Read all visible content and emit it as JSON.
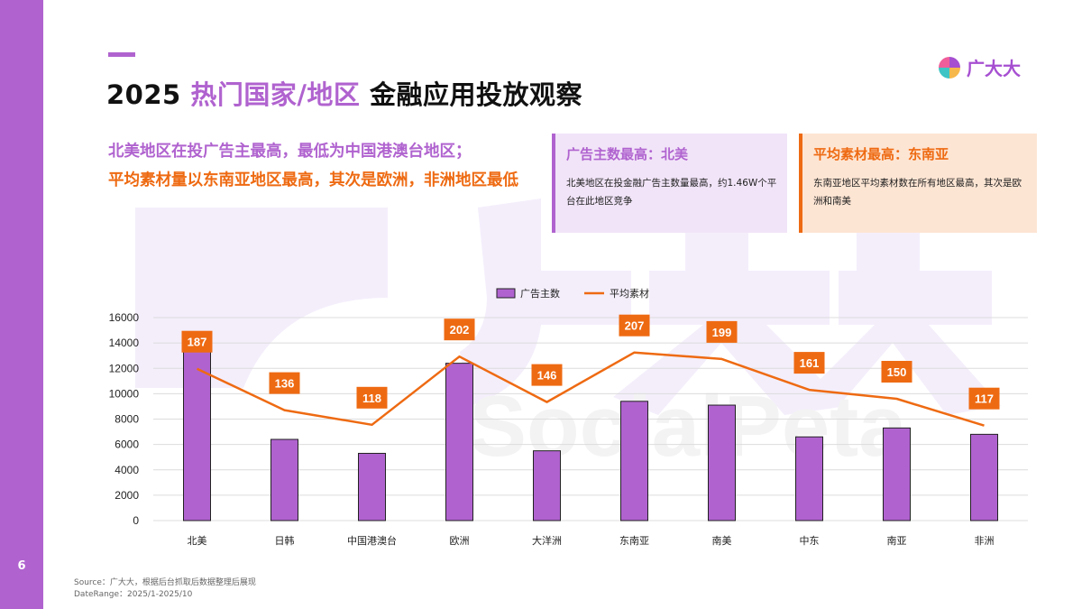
{
  "page_number": "6",
  "header": {
    "title_year": "2025",
    "title_highlight": "热门国家/地区",
    "title_rest": "金融应用投放观察"
  },
  "logo": {
    "text": "广大大"
  },
  "summary": {
    "line_purple": "北美地区在投广告主最高，最低为中国港澳台地区；",
    "line_orange": "平均素材量以东南亚地区最高，其次是欧洲，非洲地区最低"
  },
  "cards": [
    {
      "title": "广告主数最高：北美",
      "body": "北美地区在投金融广告主数量最高，约1.46W个平台在此地区竞争"
    },
    {
      "title": "平均素材最高：东南亚",
      "body": "东南亚地区平均素材数在所有地区最高，其次是欧洲和南美"
    }
  ],
  "source": {
    "line1": "Source：广大大，根据后台抓取后数据整理后展现",
    "line2": "DateRange：2025/1-2025/10"
  },
  "colors": {
    "purple": "#b063cf",
    "orange": "#ee6a12"
  },
  "chart_data": {
    "type": "bar",
    "categories": [
      "北美",
      "日韩",
      "中国港澳台",
      "欧洲",
      "大洋洲",
      "东南亚",
      "南美",
      "中东",
      "南亚",
      "非洲"
    ],
    "series": [
      {
        "name": "广告主数",
        "type": "bar",
        "values": [
          14600,
          6400,
          5300,
          12400,
          5500,
          9400,
          9100,
          6600,
          7300,
          6800
        ]
      },
      {
        "name": "平均素材",
        "type": "line",
        "values": [
          187,
          136,
          118,
          202,
          146,
          207,
          199,
          161,
          150,
          117
        ],
        "labels": [
          "187",
          "136",
          "118",
          "202",
          "146",
          "207",
          "199",
          "161",
          "150",
          "117"
        ]
      }
    ],
    "yticks": [
      "0",
      "2000",
      "4000",
      "6000",
      "8000",
      "10000",
      "12000",
      "14000",
      "16000"
    ],
    "ylim": [
      0,
      16000
    ],
    "line_ylim": [
      0,
      250
    ],
    "legend_position": "top-center",
    "grid": true
  }
}
